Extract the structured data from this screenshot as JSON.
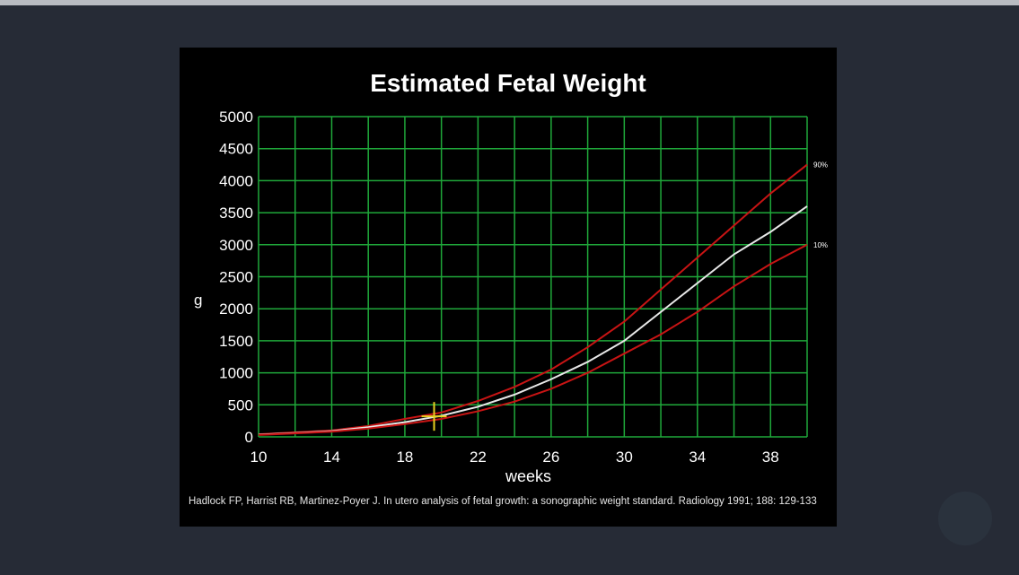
{
  "chart_data": {
    "type": "line",
    "title": "Estimated Fetal Weight",
    "xlabel": "weeks",
    "ylabel": "g",
    "xlim": [
      10,
      40
    ],
    "ylim": [
      0,
      5000
    ],
    "x_ticks": [
      10,
      14,
      18,
      22,
      26,
      30,
      34,
      38
    ],
    "y_ticks": [
      0,
      500,
      1000,
      1500,
      2000,
      2500,
      3000,
      3500,
      4000,
      4500,
      5000
    ],
    "grid": true,
    "x": [
      10,
      12,
      14,
      16,
      18,
      20,
      22,
      24,
      26,
      28,
      30,
      32,
      34,
      36,
      38,
      40
    ],
    "series": [
      {
        "name": "90%",
        "color": "#c81414",
        "values": [
          40,
          70,
          100,
          170,
          280,
          380,
          560,
          780,
          1050,
          1400,
          1800,
          2300,
          2800,
          3300,
          3800,
          4250
        ]
      },
      {
        "name": "",
        "color": "#e8e8e8",
        "values": [
          35,
          60,
          90,
          150,
          230,
          330,
          470,
          660,
          900,
          1170,
          1500,
          1950,
          2400,
          2850,
          3200,
          3600
        ]
      },
      {
        "name": "10%",
        "color": "#c81414",
        "values": [
          30,
          55,
          80,
          130,
          200,
          280,
          400,
          550,
          750,
          1000,
          1300,
          1600,
          1950,
          2350,
          2700,
          3000
        ]
      }
    ],
    "marker": {
      "x": 19.6,
      "y": 320,
      "color": "#e8d020"
    },
    "grid_color": "#1fa83a",
    "citation": "Hadlock FP, Harrist RB, Martinez-Poyer J. In utero analysis of fetal growth: a sonographic weight standard. Radiology 1991; 188: 129-133"
  }
}
